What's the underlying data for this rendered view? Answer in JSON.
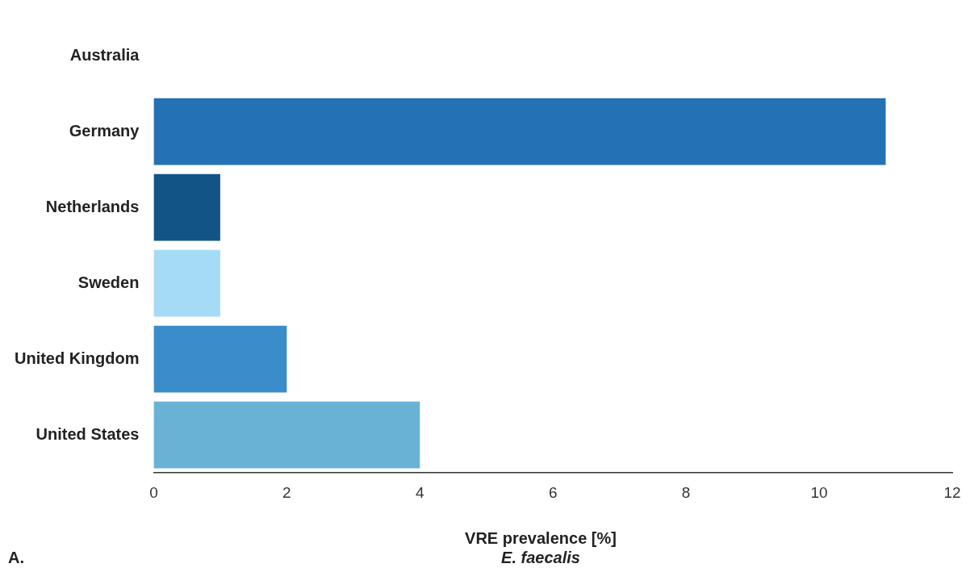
{
  "chart_data": {
    "type": "bar",
    "orientation": "horizontal",
    "xlabel": "VRE prevalence [%]",
    "annotations": [
      "E. faecalis",
      "A."
    ],
    "categories": [
      "Australia",
      "Germany",
      "Netherlands",
      "Sweden",
      "United Kingdom",
      "United States"
    ],
    "values": [
      null,
      11,
      1,
      1,
      2,
      4
    ],
    "colors": [
      "#2571b5",
      "#2571b5",
      "#135487",
      "#a5dbf5",
      "#3a8ccb",
      "#69b2d6"
    ],
    "xlim": [
      0,
      12
    ],
    "xticks": [
      0,
      2,
      4,
      6,
      8,
      10,
      12
    ],
    "grid": false,
    "legend": false
  }
}
